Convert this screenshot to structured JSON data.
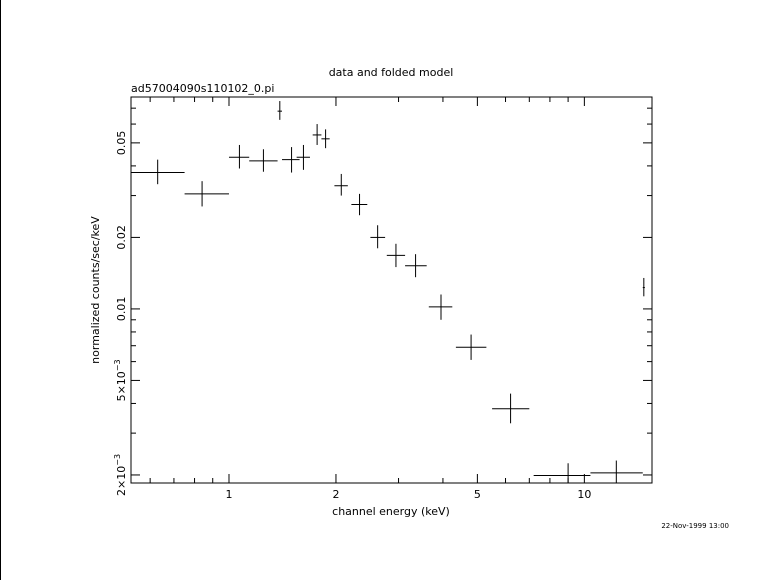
{
  "chart_data": {
    "type": "scatter",
    "title": "data and folded model",
    "subtitle": "ad57004090s110102_0.pi",
    "xlabel": "channel energy (keV)",
    "ylabel": "normalized counts/sec/keV",
    "xscale": "log",
    "yscale": "log",
    "xlim": [
      0.53,
      15.5
    ],
    "ylim": [
      0.00185,
      0.078
    ],
    "xticks": [
      {
        "value": 1,
        "label": "1"
      },
      {
        "value": 2,
        "label": "2"
      },
      {
        "value": 5,
        "label": "5"
      },
      {
        "value": 10,
        "label": "10"
      }
    ],
    "yticks": [
      {
        "value": 0.002,
        "label": "2×10",
        "exp": "−3"
      },
      {
        "value": 0.005,
        "label": "5×10",
        "exp": "−3"
      },
      {
        "value": 0.01,
        "label": "0.01",
        "exp": ""
      },
      {
        "value": 0.02,
        "label": "0.02",
        "exp": ""
      },
      {
        "value": 0.05,
        "label": "0.05",
        "exp": ""
      }
    ],
    "grid": false,
    "points": [
      {
        "x": 0.63,
        "xlo": 0.53,
        "xhi": 0.75,
        "y": 0.0375,
        "ylo": 0.0335,
        "yhi": 0.0425
      },
      {
        "x": 0.84,
        "xlo": 0.75,
        "xhi": 1.0,
        "y": 0.0305,
        "ylo": 0.027,
        "yhi": 0.0345
      },
      {
        "x": 1.07,
        "xlo": 1.0,
        "xhi": 1.14,
        "y": 0.0435,
        "ylo": 0.039,
        "yhi": 0.049
      },
      {
        "x": 1.25,
        "xlo": 1.14,
        "xhi": 1.37,
        "y": 0.042,
        "ylo": 0.0378,
        "yhi": 0.047
      },
      {
        "x": 1.39,
        "xlo": 1.37,
        "xhi": 1.41,
        "y": 0.068,
        "ylo": 0.0625,
        "yhi": 0.075
      },
      {
        "x": 1.5,
        "xlo": 1.41,
        "xhi": 1.58,
        "y": 0.0425,
        "ylo": 0.0375,
        "yhi": 0.048
      },
      {
        "x": 1.62,
        "xlo": 1.55,
        "xhi": 1.69,
        "y": 0.0435,
        "ylo": 0.0385,
        "yhi": 0.049
      },
      {
        "x": 1.77,
        "xlo": 1.72,
        "xhi": 1.82,
        "y": 0.054,
        "ylo": 0.049,
        "yhi": 0.06
      },
      {
        "x": 1.87,
        "xlo": 1.82,
        "xhi": 1.92,
        "y": 0.052,
        "ylo": 0.0475,
        "yhi": 0.057
      },
      {
        "x": 2.07,
        "xlo": 1.98,
        "xhi": 2.16,
        "y": 0.033,
        "ylo": 0.03,
        "yhi": 0.037
      },
      {
        "x": 2.33,
        "xlo": 2.21,
        "xhi": 2.45,
        "y": 0.0275,
        "ylo": 0.0248,
        "yhi": 0.0305
      },
      {
        "x": 2.62,
        "xlo": 2.5,
        "xhi": 2.75,
        "y": 0.02,
        "ylo": 0.018,
        "yhi": 0.0225
      },
      {
        "x": 2.95,
        "xlo": 2.78,
        "xhi": 3.13,
        "y": 0.0168,
        "ylo": 0.015,
        "yhi": 0.0188
      },
      {
        "x": 3.35,
        "xlo": 3.13,
        "xhi": 3.6,
        "y": 0.0152,
        "ylo": 0.0136,
        "yhi": 0.017
      },
      {
        "x": 3.95,
        "xlo": 3.65,
        "xhi": 4.25,
        "y": 0.0102,
        "ylo": 0.009,
        "yhi": 0.0115
      },
      {
        "x": 4.8,
        "xlo": 4.35,
        "xhi": 5.3,
        "y": 0.0069,
        "ylo": 0.0061,
        "yhi": 0.0078
      },
      {
        "x": 6.2,
        "xlo": 5.5,
        "xhi": 7.0,
        "y": 0.0038,
        "ylo": 0.0033,
        "yhi": 0.0044
      },
      {
        "x": 9.0,
        "xlo": 7.2,
        "xhi": 10.4,
        "y": 0.00199,
        "ylo": 0.00185,
        "yhi": 0.00224
      },
      {
        "x": 12.3,
        "xlo": 10.4,
        "xhi": 14.6,
        "y": 0.00204,
        "ylo": 0.00185,
        "yhi": 0.0023
      },
      {
        "x": 14.7,
        "xlo": 14.6,
        "xhi": 14.8,
        "y": 0.0123,
        "ylo": 0.0113,
        "yhi": 0.0135
      }
    ]
  },
  "footer": {
    "timestamp": "22-Nov-1999 13:00"
  }
}
